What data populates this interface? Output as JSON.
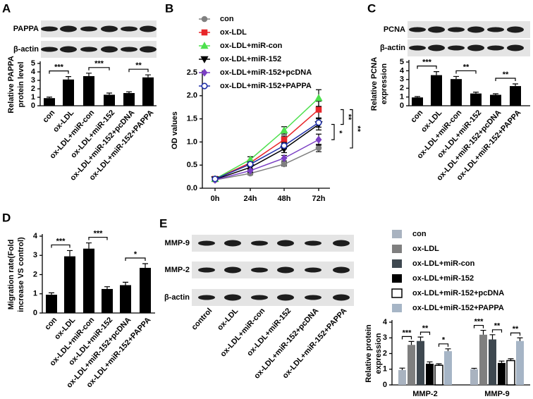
{
  "chart_data": [
    {
      "type": "bar",
      "panel": "A",
      "blot_labels": [
        "PAPPA",
        "β-actin"
      ],
      "ylabel": [
        "Relative PAPPA",
        "protein level"
      ],
      "categories": [
        "con",
        "ox-LDL",
        "ox-LDL+miR-con",
        "ox-LDL+miR-152",
        "ox-LDL+miR-152+pcDNA",
        "ox-LDL+miR-152+PAPPA"
      ],
      "values": [
        0.9,
        3.1,
        3.5,
        1.3,
        1.5,
        3.35
      ],
      "errors": [
        0.12,
        0.35,
        0.35,
        0.2,
        0.15,
        0.3
      ],
      "color": "#000000",
      "ylim": [
        0,
        5
      ],
      "yticks": [
        0,
        1,
        2,
        3,
        4,
        5
      ],
      "significance": [
        "***",
        "***",
        "**"
      ]
    },
    {
      "type": "line",
      "panel": "B",
      "ylabel": "OD values",
      "categories": [
        "0h",
        "24h",
        "48h",
        "72h"
      ],
      "series": [
        {
          "name": "con",
          "color": "#808080",
          "marker": "circle",
          "values": [
            0.18,
            0.32,
            0.52,
            0.87
          ],
          "errors": [
            0.02,
            0.03,
            0.04,
            0.08
          ]
        },
        {
          "name": "ox-LDL",
          "color": "#e8262a",
          "marker": "square",
          "values": [
            0.2,
            0.55,
            1.05,
            1.7
          ],
          "errors": [
            0.02,
            0.05,
            0.08,
            0.18
          ]
        },
        {
          "name": "ox-LDL+miR-con",
          "color": "#4de04d",
          "marker": "triangle-up",
          "values": [
            0.2,
            0.62,
            1.25,
            1.95
          ],
          "errors": [
            0.02,
            0.06,
            0.08,
            0.18
          ]
        },
        {
          "name": "ox-LDL+miR-152",
          "color": "#000000",
          "marker": "triangle-down",
          "values": [
            0.19,
            0.45,
            0.85,
            1.38
          ],
          "errors": [
            0.02,
            0.05,
            0.08,
            0.12
          ]
        },
        {
          "name": "ox-LDL+miR-152+pcDNA",
          "color": "#7b3fc4",
          "marker": "diamond",
          "values": [
            0.18,
            0.38,
            0.65,
            1.05
          ],
          "errors": [
            0.02,
            0.04,
            0.06,
            0.12
          ]
        },
        {
          "name": "ox-LDL+miR-152+PAPPA",
          "color": "#1f2fa8",
          "marker": "circle-open",
          "values": [
            0.2,
            0.52,
            0.92,
            1.42
          ],
          "errors": [
            0.02,
            0.05,
            0.07,
            0.1
          ]
        }
      ],
      "ylim": [
        0,
        2.5
      ],
      "yticks": [
        {
          "value": 0,
          "label": "0.0"
        },
        0.5,
        {
          "value": 1,
          "label": "1.0"
        },
        1.5,
        {
          "value": 2,
          "label": "2.0"
        },
        2.5
      ],
      "significance": [
        "*",
        "**",
        "**"
      ]
    },
    {
      "type": "bar",
      "panel": "C",
      "blot_labels": [
        "PCNA",
        "β-actin"
      ],
      "ylabel": [
        "Relative PCNA",
        "expression"
      ],
      "categories": [
        "con",
        "ox-LDL",
        "ox-LDL+miR-con",
        "ox-LDL+miR-152",
        "ox-LDL+miR-152+pcDNA",
        "ox-LDL+miR-152+PAPPA"
      ],
      "values": [
        0.95,
        3.5,
        3.05,
        1.4,
        1.25,
        2.25
      ],
      "errors": [
        0.1,
        0.4,
        0.3,
        0.15,
        0.12,
        0.25
      ],
      "color": "#000000",
      "ylim": [
        0,
        5
      ],
      "yticks": [
        0,
        1,
        2,
        3,
        4,
        5
      ],
      "significance": [
        "***",
        "**",
        "**"
      ]
    },
    {
      "type": "bar",
      "panel": "D",
      "ylabel": [
        "Migration rate(Fold",
        "increase VS control)"
      ],
      "categories": [
        "con",
        "ox-LDL",
        "ox-LDL+miR-con",
        "ox-LDL+miR-152",
        "ox-LDL+miR-152+pcDNA",
        "ox-LDL+miR-152+PAPPA"
      ],
      "values": [
        0.95,
        2.95,
        3.35,
        1.25,
        1.45,
        2.35
      ],
      "errors": [
        0.1,
        0.3,
        0.3,
        0.12,
        0.15,
        0.22
      ],
      "color": "#000000",
      "ylim": [
        0,
        4
      ],
      "yticks": [
        0,
        1,
        2,
        3,
        4
      ],
      "significance": [
        "***",
        "***",
        "*"
      ]
    },
    {
      "type": "grouped_bar",
      "panel": "E",
      "blot_labels": [
        "MMP-9",
        "MMP-2",
        "β-actin"
      ],
      "lanes": [
        "control",
        "ox-LDL",
        "ox-LDL+miR-con",
        "ox-LDL+miR-152",
        "ox-LDL+miR-152+pcDNA",
        "ox-LDL+miR-152+PAPPA"
      ],
      "ylabel": [
        "Relative protein",
        "expression"
      ],
      "categories": [
        "MMP-2",
        "MMP-9"
      ],
      "series": [
        {
          "name": "con",
          "color": "#a9b3c0",
          "values": [
            0.95,
            1.0
          ],
          "errors": [
            0.12,
            0.06
          ]
        },
        {
          "name": "ox-LDL",
          "color": "#7f7f7f",
          "values": [
            2.55,
            3.2
          ],
          "errors": [
            0.22,
            0.28
          ]
        },
        {
          "name": "ox-LDL+miR-con",
          "color": "#3e4850",
          "values": [
            2.8,
            2.9
          ],
          "errors": [
            0.25,
            0.3
          ]
        },
        {
          "name": "ox-LDL+miR-152",
          "color": "#000000",
          "values": [
            1.35,
            1.4
          ],
          "errors": [
            0.12,
            0.12
          ]
        },
        {
          "name": "ox-LDL+miR-152+pcDNA",
          "color": "#ffffff",
          "values": [
            1.25,
            1.55
          ],
          "errors": [
            0.1,
            0.12
          ]
        },
        {
          "name": "ox-LDL+miR-152+PAPPA",
          "color": "#a6b5c6",
          "values": [
            2.15,
            2.8
          ],
          "errors": [
            0.15,
            0.2
          ]
        }
      ],
      "ylim": [
        0,
        4
      ],
      "yticks": [
        0,
        1,
        2,
        3,
        4
      ],
      "significance": [
        [
          "***",
          "**",
          "*"
        ],
        [
          "***",
          "**",
          "**"
        ]
      ]
    }
  ]
}
